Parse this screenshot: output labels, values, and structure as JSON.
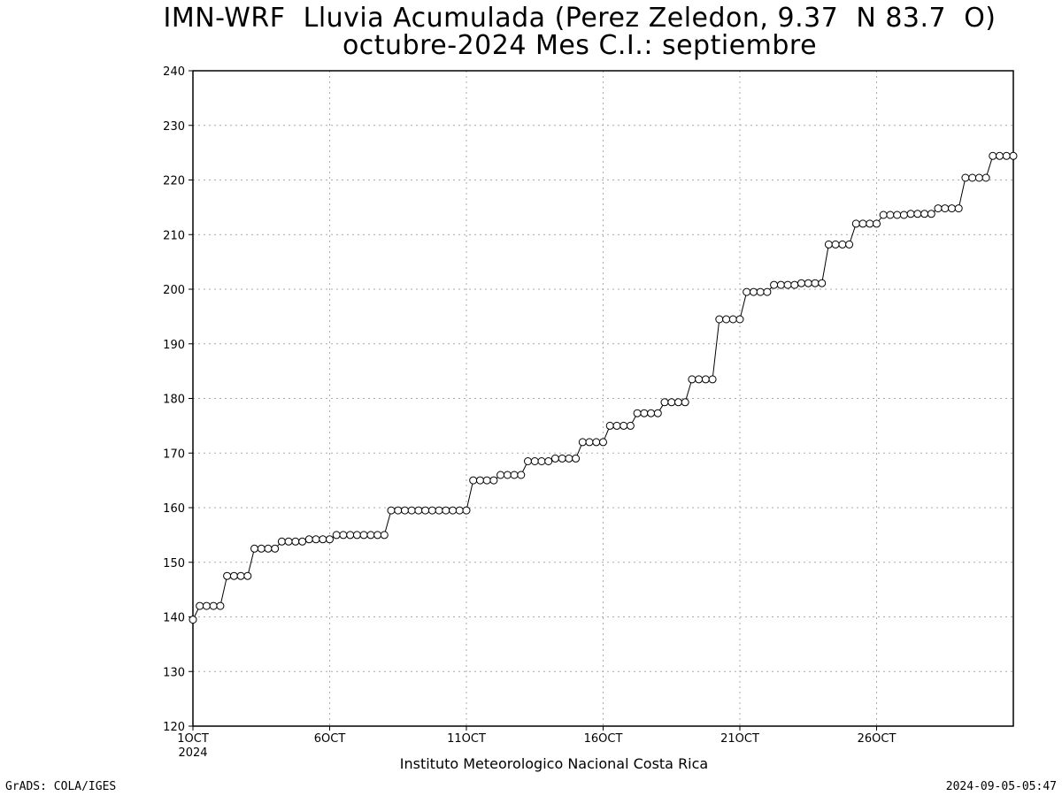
{
  "header": {
    "title_line1": "IMN-WRF  Lluvia Acumulada (Perez Zeledon, 9.37  N 83.7  O)",
    "title_line2": "octubre-2024 Mes C.I.: septiembre"
  },
  "footer": {
    "left": "GrADS: COLA/IGES",
    "right": "2024-09-05-05:47",
    "institution": "Instituto Meteorologico Nacional Costa Rica"
  },
  "chart_data": {
    "type": "line",
    "grid": true,
    "grid_style": "dotted",
    "legend": "none",
    "colors": {
      "line": "#000000",
      "marker_fill": "#ffffff",
      "grid": "#aaaaaa"
    },
    "xlim": [
      1,
      31
    ],
    "ylim": [
      120,
      240
    ],
    "y_ticks": [
      120,
      130,
      140,
      150,
      160,
      170,
      180,
      190,
      200,
      210,
      220,
      230,
      240
    ],
    "x_ticks": [
      {
        "value": 1,
        "label": "1OCT",
        "sublabel": "2024"
      },
      {
        "value": 6,
        "label": "6OCT"
      },
      {
        "value": 11,
        "label": "11OCT"
      },
      {
        "value": 16,
        "label": "16OCT"
      },
      {
        "value": 21,
        "label": "21OCT"
      },
      {
        "value": 26,
        "label": "26OCT"
      }
    ],
    "step": 0.25,
    "x_start": 1,
    "series": [
      {
        "values": [
          139.5,
          142,
          142,
          142,
          142,
          147.5,
          147.5,
          147.5,
          147.5,
          152.5,
          152.5,
          152.5,
          152.5,
          153.8,
          153.8,
          153.8,
          153.8,
          154.2,
          154.2,
          154.2,
          154.2,
          155,
          155,
          155,
          155,
          155,
          155,
          155,
          155,
          159.5,
          159.5,
          159.5,
          159.5,
          159.5,
          159.5,
          159.5,
          159.5,
          159.5,
          159.5,
          159.5,
          159.5,
          165,
          165,
          165,
          165,
          166,
          166,
          166,
          166,
          168.5,
          168.5,
          168.5,
          168.5,
          169,
          169,
          169,
          169,
          172,
          172,
          172,
          172,
          175,
          175,
          175,
          175,
          177.3,
          177.3,
          177.3,
          177.3,
          179.3,
          179.3,
          179.3,
          179.3,
          183.5,
          183.5,
          183.5,
          183.5,
          194.5,
          194.5,
          194.5,
          194.5,
          199.5,
          199.5,
          199.5,
          199.5,
          200.8,
          200.8,
          200.8,
          200.8,
          201.1,
          201.1,
          201.1,
          201.1,
          208.2,
          208.2,
          208.2,
          208.2,
          212,
          212,
          212,
          212,
          213.6,
          213.6,
          213.6,
          213.6,
          213.8,
          213.8,
          213.8,
          213.8,
          214.8,
          214.8,
          214.8,
          214.8,
          220.4,
          220.4,
          220.4,
          220.4,
          224.4,
          224.4,
          224.4,
          224.4
        ]
      }
    ]
  }
}
